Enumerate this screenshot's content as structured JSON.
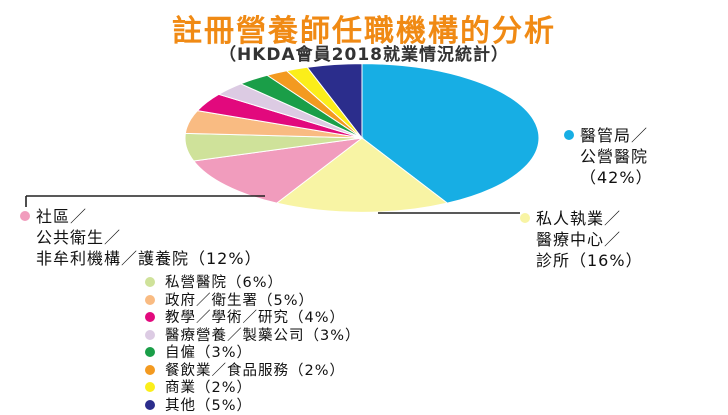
{
  "title": "註冊營養師任職機構的分析",
  "subtitle": "（HKDA會員2018就業情況統計）",
  "chart_data": {
    "type": "pie",
    "title": "註冊營養師任職機構的分析",
    "subtitle": "（HKDA會員2018就業情況統計）",
    "unit": "%",
    "slices": [
      {
        "label": "醫管局／公營醫院",
        "value": 42,
        "color": "#17aee4"
      },
      {
        "label": "私人執業／醫療中心／診所",
        "value": 16,
        "color": "#f8f4a4"
      },
      {
        "label": "社區／公共衛生／非牟利機構／護養院",
        "value": 12,
        "color": "#f19cbd"
      },
      {
        "label": "私營醫院",
        "value": 6,
        "color": "#cfe29a"
      },
      {
        "label": "政府／衛生署",
        "value": 5,
        "color": "#f9bb82"
      },
      {
        "label": "教學／學術／研究",
        "value": 4,
        "color": "#e2097d"
      },
      {
        "label": "醫療營養／製藥公司",
        "value": 3,
        "color": "#dccbe3"
      },
      {
        "label": "自僱",
        "value": 3,
        "color": "#1a9e48"
      },
      {
        "label": "餐飲業／食品服務",
        "value": 2,
        "color": "#f39a20"
      },
      {
        "label": "商業",
        "value": 2,
        "color": "#fbee1a"
      },
      {
        "label": "其他",
        "value": 5,
        "color": "#2b2d8c"
      }
    ]
  },
  "callouts": {
    "hospital": {
      "line1": "醫管局／",
      "line2": "公營醫院",
      "line3": "（42%）"
    },
    "private": {
      "line1": "私人執業／",
      "line2": "醫療中心／",
      "line3": "診所（16%）"
    },
    "community": {
      "line1": "社區／",
      "line2": "公共衛生／",
      "line3": "非牟利機構／護養院（12%）"
    }
  },
  "legend": [
    {
      "text": "私營醫院（6%）"
    },
    {
      "text": "政府／衛生署（5%）"
    },
    {
      "text": "教學／學術／研究（4%）"
    },
    {
      "text": "醫療營養／製藥公司（3%）"
    },
    {
      "text": "自僱（3%）"
    },
    {
      "text": "餐飲業／食品服務（2%）"
    },
    {
      "text": "商業（2%）"
    },
    {
      "text": "其他（5%）"
    }
  ]
}
